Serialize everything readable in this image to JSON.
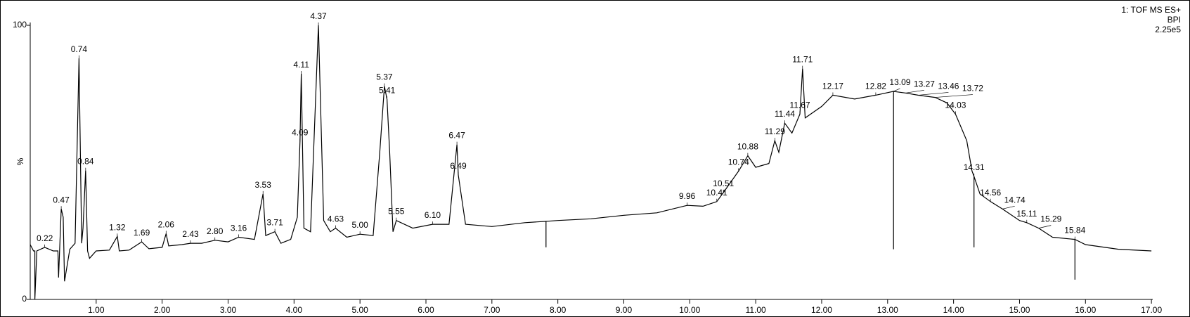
{
  "chart_data": {
    "type": "line",
    "header": [
      "1: TOF MS ES+",
      "BPI",
      "2.25e5"
    ],
    "ylabel": "%",
    "xlim": [
      0,
      17.02
    ],
    "ylim": [
      0,
      100
    ],
    "xticks": [
      {
        "value": 1,
        "label": "1.00"
      },
      {
        "value": 2,
        "label": "2.00"
      },
      {
        "value": 3,
        "label": "3.00"
      },
      {
        "value": 4,
        "label": "4.00"
      },
      {
        "value": 5,
        "label": "5.00"
      },
      {
        "value": 6,
        "label": "6.00"
      },
      {
        "value": 7,
        "label": "7.00"
      },
      {
        "value": 8,
        "label": "8.00"
      },
      {
        "value": 9,
        "label": "9.00"
      },
      {
        "value": 10,
        "label": "10.00"
      },
      {
        "value": 11,
        "label": "11.00"
      },
      {
        "value": 12,
        "label": "12.00"
      },
      {
        "value": 13,
        "label": "13.00"
      },
      {
        "value": 14,
        "label": "14.00"
      },
      {
        "value": 15,
        "label": "15.00"
      },
      {
        "value": 16,
        "label": "16.00"
      },
      {
        "value": 17,
        "label": "17.00"
      }
    ],
    "yticks": [
      0,
      100
    ],
    "series": [
      {
        "color": "#000000",
        "x": [
          0.0,
          0.05,
          0.07,
          0.07,
          0.1,
          0.22,
          0.35,
          0.42,
          0.43,
          0.47,
          0.5,
          0.52,
          0.6,
          0.68,
          0.74,
          0.78,
          0.8,
          0.84,
          0.87,
          0.9,
          1.0,
          1.2,
          1.32,
          1.35,
          1.5,
          1.69,
          1.8,
          2.0,
          2.06,
          2.1,
          2.3,
          2.43,
          2.6,
          2.8,
          3.0,
          3.16,
          3.4,
          3.53,
          3.57,
          3.71,
          3.8,
          3.95,
          4.05,
          4.09,
          4.11,
          4.15,
          4.25,
          4.37,
          4.45,
          4.55,
          4.63,
          4.8,
          5.0,
          5.2,
          5.3,
          5.37,
          5.41,
          5.45,
          5.5,
          5.55,
          5.8,
          6.1,
          6.35,
          6.47,
          6.49,
          6.6,
          7.0,
          7.5,
          7.82,
          7.82,
          7.82,
          8.0,
          8.5,
          9.0,
          9.5,
          9.96,
          10.2,
          10.41,
          10.51,
          10.74,
          10.88,
          11.0,
          11.2,
          11.29,
          11.35,
          11.44,
          11.55,
          11.67,
          11.71,
          11.75,
          12.0,
          12.17,
          12.5,
          12.82,
          13.09,
          13.09,
          13.09,
          13.27,
          13.46,
          13.72,
          13.9,
          14.03,
          14.2,
          14.28,
          14.31,
          14.31,
          14.31,
          14.4,
          14.56,
          14.74,
          15.0,
          15.11,
          15.29,
          15.5,
          15.84,
          15.84,
          15.84,
          16.0,
          16.5,
          17.0
        ],
        "values": [
          20,
          17.7,
          17.7,
          0,
          17.7,
          19,
          17.7,
          17.7,
          8,
          33,
          30,
          6.6,
          18.3,
          20.5,
          88,
          20.5,
          26,
          47,
          17.7,
          15,
          17.7,
          18,
          23,
          17.7,
          18,
          21,
          18.5,
          19,
          24,
          19.5,
          20,
          20.5,
          20.5,
          21.6,
          21,
          22.7,
          21.9,
          38.5,
          23.3,
          24.7,
          20.5,
          21.9,
          30,
          57.6,
          82.3,
          26,
          24.7,
          100,
          28.8,
          24.7,
          26,
          22.7,
          23.8,
          23.3,
          53.7,
          77.8,
          73,
          53.7,
          24.7,
          28.8,
          26,
          27.4,
          27.4,
          56.5,
          45.4,
          27.4,
          26.6,
          28,
          28.5,
          19,
          28.5,
          28.8,
          29.4,
          30.7,
          31.6,
          34.3,
          34,
          35.7,
          39,
          46.8,
          52.4,
          48.2,
          49.6,
          57.9,
          53.7,
          64.3,
          60.7,
          67.6,
          84.2,
          66.2,
          70.4,
          74.5,
          73.1,
          74.5,
          75.9,
          18.3,
          75.9,
          75.3,
          74.5,
          73.7,
          71.7,
          67.6,
          57.9,
          46.8,
          44.9,
          19,
          44.9,
          38.5,
          35.7,
          33,
          28.8,
          28,
          26,
          22.7,
          21.9,
          7.2,
          21.9,
          20,
          18.3,
          17.7
        ]
      }
    ],
    "peaks": [
      {
        "x": 0.22,
        "label": "0.22",
        "y": 19
      },
      {
        "x": 0.47,
        "label": "0.47",
        "y": 33
      },
      {
        "x": 0.74,
        "label": "0.74",
        "y": 88
      },
      {
        "x": 0.84,
        "label": "0.84",
        "y": 47
      },
      {
        "x": 1.32,
        "label": "1.32",
        "y": 23
      },
      {
        "x": 1.69,
        "label": "1.69",
        "y": 21
      },
      {
        "x": 2.06,
        "label": "2.06",
        "y": 24
      },
      {
        "x": 2.43,
        "label": "2.43",
        "y": 20.5
      },
      {
        "x": 2.8,
        "label": "2.80",
        "y": 21.6
      },
      {
        "x": 3.16,
        "label": "3.16",
        "y": 22.7
      },
      {
        "x": 3.53,
        "label": "3.53",
        "y": 38.5
      },
      {
        "x": 3.71,
        "label": "3.71",
        "y": 24.7
      },
      {
        "x": 4.09,
        "label": "4.09",
        "y": 57.6
      },
      {
        "x": 4.11,
        "label": "4.11",
        "y": 82.3
      },
      {
        "x": 4.37,
        "label": "4.37",
        "y": 100
      },
      {
        "x": 4.63,
        "label": "4.63",
        "y": 26
      },
      {
        "x": 5,
        "label": "5.00",
        "y": 23.8
      },
      {
        "x": 5.37,
        "label": "5.37",
        "y": 77.8
      },
      {
        "x": 5.41,
        "label": "5.41",
        "y": 73
      },
      {
        "x": 5.55,
        "label": "5.55",
        "y": 28.8
      },
      {
        "x": 6.1,
        "label": "6.10",
        "y": 27.4
      },
      {
        "x": 6.47,
        "label": "6.47",
        "y": 56.5
      },
      {
        "x": 6.49,
        "label": "6.49",
        "y": 45.4
      },
      {
        "x": 9.96,
        "label": "9.96",
        "y": 34.3
      },
      {
        "x": 10.41,
        "label": "10.41",
        "y": 35.7
      },
      {
        "x": 10.51,
        "label": "10.51",
        "y": 39
      },
      {
        "x": 10.74,
        "label": "10.74",
        "y": 46.8
      },
      {
        "x": 10.88,
        "label": "10.88",
        "y": 52.4
      },
      {
        "x": 11.29,
        "label": "11.29",
        "y": 57.9
      },
      {
        "x": 11.44,
        "label": "11.44",
        "y": 64.3
      },
      {
        "x": 11.67,
        "label": "11.67",
        "y": 67.6
      },
      {
        "x": 11.71,
        "label": "11.71",
        "y": 84.2
      },
      {
        "x": 12.17,
        "label": "12.17",
        "y": 74.5
      },
      {
        "x": 12.82,
        "label": "12.82",
        "y": 74.5
      },
      {
        "x": 13.09,
        "label": "13.09",
        "y": 75.9
      },
      {
        "x": 13.27,
        "label": "13.27",
        "y": 75.3
      },
      {
        "x": 13.46,
        "label": "13.46",
        "y": 74.5
      },
      {
        "x": 13.72,
        "label": "13.72",
        "y": 73.7
      },
      {
        "x": 14.03,
        "label": "14.03",
        "y": 67.6
      },
      {
        "x": 14.31,
        "label": "14.31",
        "y": 44.9
      },
      {
        "x": 14.56,
        "label": "14.56",
        "y": 35.7
      },
      {
        "x": 14.74,
        "label": "14.74",
        "y": 33
      },
      {
        "x": 15.11,
        "label": "15.11",
        "y": 28
      },
      {
        "x": 15.29,
        "label": "15.29",
        "y": 26
      },
      {
        "x": 15.84,
        "label": "15.84",
        "y": 21.9
      }
    ]
  }
}
